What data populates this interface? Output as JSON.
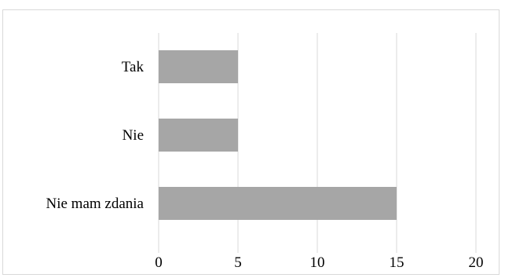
{
  "chart_data": {
    "type": "bar",
    "orientation": "horizontal",
    "categories": [
      "Tak",
      "Nie",
      "Nie mam zdania"
    ],
    "values": [
      5,
      5,
      15
    ],
    "xlim": [
      0,
      20
    ],
    "xticks": [
      0,
      5,
      10,
      15,
      20
    ],
    "grid": true,
    "bar_color": "#a6a6a6",
    "grid_color": "#d9d9d9"
  }
}
